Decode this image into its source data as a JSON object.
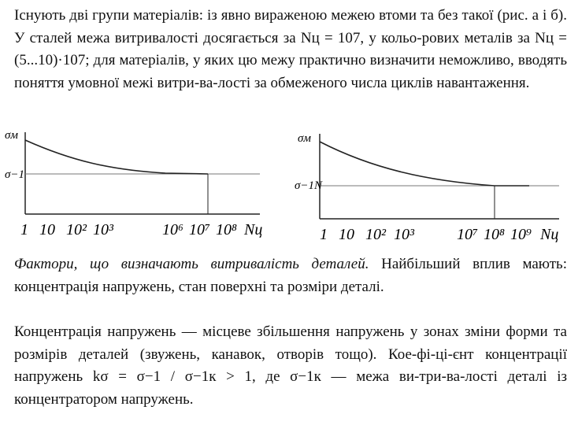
{
  "paragraph1": {
    "text": "Існують дві групи матеріалів: із явно вираженою межею втоми та без такої (рис. а і б). У сталей межа витривалості досягається за Nц = 107, у кольо-рових металів за Nц = (5...10)·107; для матеріалів, у яких цю межу практично визначити неможливо, вводять поняття умовної межі витри-ва-лості за обмеженого числа циклів навантаження."
  },
  "graph_a": {
    "y_top_label": "σм",
    "y_limit_label": "σ−1",
    "x_ticks": [
      "1",
      "10",
      "10²",
      "10³",
      "10⁶",
      "10⁷",
      "10⁸"
    ],
    "x_axis_label": "Nц"
  },
  "graph_b": {
    "y_top_label": "σм",
    "y_limit_label": "σ−1N",
    "x_ticks": [
      "1",
      "10",
      "10²",
      "10³",
      "10⁷",
      "10⁸",
      "10⁹"
    ],
    "x_axis_label": "Nц"
  },
  "paragraph2": {
    "italic_lead": "Фактори, що визначають витривалість деталей.",
    "rest": " Найбільший вплив мають: концентрація напружень, стан поверхні та розміри деталі."
  },
  "paragraph3": {
    "text": "Концентрація напружень — місцеве збільшення напружень у зонах зміни форми та розмірів деталей (звужень, канавок, отворів тощо). Кое-фі-ці-єнт концентрації напружень kσ = σ−1 / σ−1к > 1, де σ−1к — межа ви-три-ва-лості деталі із концентратором напружень."
  }
}
